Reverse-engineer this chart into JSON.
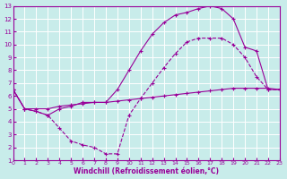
{
  "xlabel": "Windchill (Refroidissement éolien,°C)",
  "bg_color": "#c8ecea",
  "line_color": "#990099",
  "grid_color": "#ffffff",
  "xlim": [
    0,
    23
  ],
  "ylim": [
    1,
    13
  ],
  "xticks": [
    0,
    1,
    2,
    3,
    4,
    5,
    6,
    7,
    8,
    9,
    10,
    11,
    12,
    13,
    14,
    15,
    16,
    17,
    18,
    19,
    20,
    21,
    22,
    23
  ],
  "yticks": [
    1,
    2,
    3,
    4,
    5,
    6,
    7,
    8,
    9,
    10,
    11,
    12,
    13
  ],
  "line1_x": [
    0,
    1,
    2,
    3,
    4,
    5,
    6,
    7,
    8,
    9,
    10,
    11,
    12,
    13,
    14,
    15,
    16,
    17,
    18,
    19,
    20,
    21,
    22,
    23
  ],
  "line1_y": [
    6.5,
    5.0,
    5.0,
    5.0,
    5.2,
    5.3,
    5.4,
    5.5,
    5.5,
    5.6,
    5.7,
    5.8,
    5.9,
    6.0,
    6.1,
    6.2,
    6.3,
    6.4,
    6.5,
    6.6,
    6.6,
    6.6,
    6.6,
    6.5
  ],
  "line2_x": [
    0,
    1,
    2,
    3,
    4,
    5,
    6,
    7,
    8,
    9,
    10,
    11,
    12,
    13,
    14,
    15,
    16,
    17,
    18,
    19,
    20,
    21,
    22,
    23
  ],
  "line2_y": [
    6.5,
    5.0,
    4.8,
    4.5,
    3.5,
    2.5,
    2.2,
    2.0,
    1.5,
    1.5,
    4.5,
    5.8,
    7.0,
    8.2,
    9.3,
    10.2,
    10.5,
    10.5,
    10.5,
    10.0,
    9.0,
    7.5,
    6.5,
    6.5
  ],
  "line3_x": [
    0,
    1,
    2,
    3,
    4,
    5,
    6,
    7,
    8,
    9,
    10,
    11,
    12,
    13,
    14,
    15,
    16,
    17,
    18,
    19,
    20,
    21,
    22,
    23
  ],
  "line3_y": [
    6.5,
    5.0,
    4.8,
    4.5,
    5.0,
    5.2,
    5.5,
    5.5,
    5.5,
    6.5,
    8.0,
    9.5,
    10.8,
    11.7,
    12.3,
    12.5,
    12.8,
    13.0,
    12.8,
    12.0,
    9.8,
    9.5,
    6.5,
    6.5
  ]
}
